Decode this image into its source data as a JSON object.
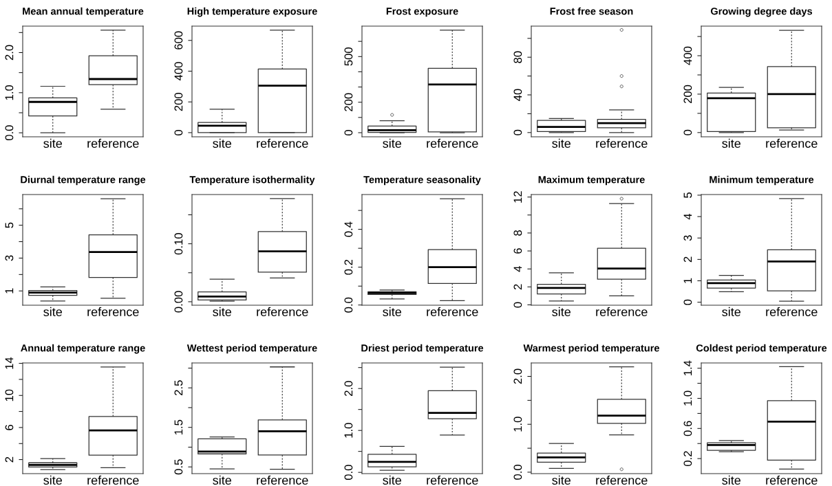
{
  "chart_data": [
    {
      "type": "box",
      "title": "Mean annual temperature",
      "categories": [
        "site",
        "reference"
      ],
      "boxes": [
        {
          "low": 0.0,
          "q1": 0.42,
          "median": 0.77,
          "q3": 0.87,
          "high": 1.16
        },
        {
          "low": 0.59,
          "q1": 1.2,
          "median": 1.34,
          "q3": 1.92,
          "high": 2.56
        }
      ],
      "ylim": [
        -0.1,
        2.66
      ],
      "yticks": [
        {
          "value": 0,
          "label": "0.0"
        },
        {
          "value": 0.5,
          "label": null
        },
        {
          "value": 1,
          "label": "1.0"
        },
        {
          "value": 1.5,
          "label": null
        },
        {
          "value": 2,
          "label": "2.0"
        },
        {
          "value": 2.5,
          "label": null
        }
      ]
    },
    {
      "type": "box",
      "title": "High temperature exposure",
      "categories": [
        "site",
        "reference"
      ],
      "boxes": [
        {
          "low": 0,
          "q1": 0,
          "median": 45,
          "q3": 66,
          "high": 152
        },
        {
          "low": 0,
          "q1": 0,
          "median": 306,
          "q3": 414,
          "high": 667
        }
      ],
      "ylim": [
        -27,
        693
      ],
      "yticks": [
        0,
        200,
        400,
        600
      ]
    },
    {
      "type": "box",
      "title": "Frost exposure",
      "categories": [
        "site",
        "reference"
      ],
      "boxes": [
        {
          "low": 0,
          "q1": 2,
          "median": 16,
          "q3": 43,
          "high": 78,
          "outliers": [
            117
          ]
        },
        {
          "low": 0,
          "q1": 5,
          "median": 317,
          "q3": 423,
          "high": 673
        }
      ],
      "ylim": [
        -27,
        700
      ],
      "yticks": [
        0,
        {
          "value": 100,
          "label": null
        },
        200,
        {
          "value": 300,
          "label": null
        },
        {
          "value": 400,
          "label": null
        },
        500,
        {
          "value": 600,
          "label": null
        }
      ]
    },
    {
      "type": "box",
      "title": "Frost free season",
      "categories": [
        "site",
        "reference"
      ],
      "boxes": [
        {
          "low": 0,
          "q1": 1,
          "median": 6,
          "q3": 13,
          "high": 15
        },
        {
          "low": 0,
          "q1": 5,
          "median": 10,
          "q3": 14,
          "high": 24,
          "outliers": [
            49,
            60,
            109
          ]
        }
      ],
      "ylim": [
        -4.5,
        113
      ],
      "yticks": [
        0,
        {
          "value": 20,
          "label": null
        },
        40,
        {
          "value": 60,
          "label": null
        },
        80,
        {
          "value": 100,
          "label": null
        }
      ]
    },
    {
      "type": "box",
      "title": "Growing degree days",
      "categories": [
        "site",
        "reference"
      ],
      "boxes": [
        {
          "low": 0,
          "q1": 5,
          "median": 179,
          "q3": 206,
          "high": 235
        },
        {
          "low": 13,
          "q1": 25,
          "median": 200,
          "q3": 343,
          "high": 532
        }
      ],
      "ylim": [
        -22,
        554
      ],
      "yticks": [
        0,
        {
          "value": 100,
          "label": null
        },
        200,
        {
          "value": 300,
          "label": null
        },
        400,
        {
          "value": 500,
          "label": null
        }
      ]
    },
    {
      "type": "box",
      "title": "Diurnal temperature range",
      "categories": [
        "site",
        "reference"
      ],
      "boxes": [
        {
          "low": 0.39,
          "q1": 0.73,
          "median": 0.9,
          "q3": 1.02,
          "high": 1.24
        },
        {
          "low": 0.55,
          "q1": 1.82,
          "median": 3.37,
          "q3": 4.42,
          "high": 6.61
        }
      ],
      "ylim": [
        0.13,
        6.87
      ],
      "yticks": [
        1,
        {
          "value": 2,
          "label": null
        },
        3,
        {
          "value": 4,
          "label": null
        },
        5,
        {
          "value": 6,
          "label": null
        }
      ]
    },
    {
      "type": "box",
      "title": "Temperature isothermality",
      "categories": [
        "site",
        "reference"
      ],
      "boxes": [
        {
          "low": 0.001,
          "q1": 0.003,
          "median": 0.009,
          "q3": 0.017,
          "high": 0.039
        },
        {
          "low": 0.041,
          "q1": 0.051,
          "median": 0.087,
          "q3": 0.121,
          "high": 0.178
        }
      ],
      "ylim": [
        -0.006,
        0.185
      ],
      "yticks": [
        {
          "value": 0.0,
          "label": "0.00"
        },
        {
          "value": 0.05,
          "label": null
        },
        {
          "value": 0.1,
          "label": "0.10"
        },
        {
          "value": 0.15,
          "label": null
        }
      ]
    },
    {
      "type": "box",
      "title": "Temperature seasonality",
      "categories": [
        "site",
        "reference"
      ],
      "boxes": [
        {
          "low": 0.032,
          "q1": 0.056,
          "median": 0.063,
          "q3": 0.07,
          "high": 0.079
        },
        {
          "low": 0.023,
          "q1": 0.114,
          "median": 0.2,
          "q3": 0.293,
          "high": 0.562
        }
      ],
      "ylim": [
        -0.001,
        0.584
      ],
      "yticks": [
        {
          "value": 0,
          "label": "0.0"
        },
        {
          "value": 0.1,
          "label": null
        },
        0.2,
        {
          "value": 0.3,
          "label": null
        },
        0.4,
        {
          "value": 0.5,
          "label": null
        }
      ]
    },
    {
      "type": "box",
      "title": "Maximum temperature",
      "categories": [
        "site",
        "reference"
      ],
      "boxes": [
        {
          "low": 0.42,
          "q1": 1.22,
          "median": 1.88,
          "q3": 2.29,
          "high": 3.57
        },
        {
          "low": 1.01,
          "q1": 2.86,
          "median": 4.05,
          "q3": 6.31,
          "high": 11.28,
          "outliers": [
            11.82
          ]
        }
      ],
      "ylim": [
        -0.04,
        12.28
      ],
      "yticks": [
        0,
        2,
        4,
        6,
        8,
        {
          "value": 10,
          "label": null
        },
        12
      ]
    },
    {
      "type": "box",
      "title": "Minimum temperature",
      "categories": [
        "site",
        "reference"
      ],
      "boxes": [
        {
          "low": 0.49,
          "q1": 0.66,
          "median": 0.89,
          "q3": 1.04,
          "high": 1.25
        },
        {
          "low": 0.05,
          "q1": 0.53,
          "median": 1.9,
          "q3": 2.45,
          "high": 4.84
        }
      ],
      "ylim": [
        -0.14,
        5.03
      ],
      "yticks": [
        0,
        1,
        2,
        3,
        4,
        5
      ]
    },
    {
      "type": "box",
      "title": "Annual temperature range",
      "categories": [
        "site",
        "reference"
      ],
      "boxes": [
        {
          "low": 0.75,
          "q1": 1.08,
          "median": 1.34,
          "q3": 1.6,
          "high": 2.13
        },
        {
          "low": 0.98,
          "q1": 2.56,
          "median": 5.63,
          "q3": 7.38,
          "high": 13.55
        }
      ],
      "ylim": [
        0.25,
        14.05
      ],
      "yticks": [
        2,
        {
          "value": 4,
          "label": null
        },
        6,
        {
          "value": 8,
          "label": null
        },
        10,
        {
          "value": 12,
          "label": null
        },
        14
      ]
    },
    {
      "type": "box",
      "title": "Wettest period temperature",
      "categories": [
        "site",
        "reference"
      ],
      "boxes": [
        {
          "low": 0.45,
          "q1": 0.83,
          "median": 0.89,
          "q3": 1.21,
          "high": 1.26
        },
        {
          "low": 0.44,
          "q1": 0.8,
          "median": 1.4,
          "q3": 1.69,
          "high": 3.03
        }
      ],
      "ylim": [
        0.33,
        3.13
      ],
      "yticks": [
        0.5,
        {
          "value": 1.0,
          "label": null
        },
        1.5,
        {
          "value": 2.0,
          "label": null
        },
        2.5,
        {
          "value": 3.0,
          "label": null
        }
      ]
    },
    {
      "type": "box",
      "title": "Driest period temperature",
      "categories": [
        "site",
        "reference"
      ],
      "boxes": [
        {
          "low": 0.05,
          "q1": 0.13,
          "median": 0.25,
          "q3": 0.43,
          "high": 0.62
        },
        {
          "low": 0.89,
          "q1": 1.28,
          "median": 1.42,
          "q3": 1.95,
          "high": 2.51
        }
      ],
      "ylim": [
        -0.03,
        2.61
      ],
      "yticks": [
        {
          "value": 0,
          "label": "0.0"
        },
        {
          "value": 0.5,
          "label": null
        },
        {
          "value": 1,
          "label": "1.0"
        },
        {
          "value": 1.5,
          "label": null
        },
        {
          "value": 2,
          "label": "2.0"
        },
        {
          "value": 2.5,
          "label": null
        }
      ]
    },
    {
      "type": "box",
      "title": "Warmest period temperature",
      "categories": [
        "site",
        "reference"
      ],
      "boxes": [
        {
          "low": 0.08,
          "q1": 0.21,
          "median": 0.31,
          "q3": 0.4,
          "high": 0.6
        },
        {
          "low": 0.78,
          "q1": 1.02,
          "median": 1.18,
          "q3": 1.52,
          "high": 2.2,
          "outliers": [
            0.06
          ]
        }
      ],
      "ylim": [
        -0.03,
        2.28
      ],
      "yticks": [
        {
          "value": 0,
          "label": "0.0"
        },
        {
          "value": 0.5,
          "label": null
        },
        {
          "value": 1,
          "label": "1.0"
        },
        {
          "value": 1.5,
          "label": null
        },
        {
          "value": 2,
          "label": "2.0"
        }
      ]
    },
    {
      "type": "box",
      "title": "Coldest period temperature",
      "categories": [
        "site",
        "reference"
      ],
      "boxes": [
        {
          "low": 0.29,
          "q1": 0.31,
          "median": 0.38,
          "q3": 0.41,
          "high": 0.44
        },
        {
          "low": 0.06,
          "q1": 0.18,
          "median": 0.69,
          "q3": 0.97,
          "high": 1.42
        }
      ],
      "ylim": [
        0.0,
        1.47
      ],
      "yticks": [
        0.2,
        {
          "value": 0.4,
          "label": null
        },
        0.6,
        {
          "value": 0.8,
          "label": null
        },
        {
          "value": 1,
          "label": "1.0"
        },
        {
          "value": 1.2,
          "label": null
        },
        1.4
      ]
    }
  ]
}
